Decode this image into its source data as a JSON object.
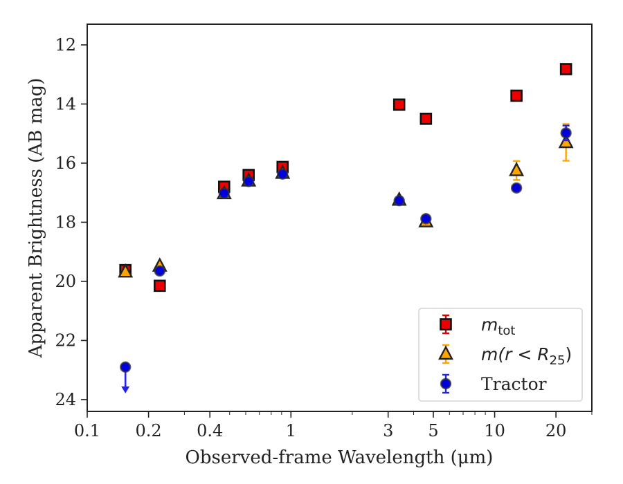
{
  "chart_data": {
    "type": "scatter",
    "title": "",
    "xlabel": "Observed-frame Wavelength (μm)",
    "ylabel": "Apparent Brightness (AB mag)",
    "x_scale": "log",
    "xlim": [
      0.1,
      30
    ],
    "ylim": [
      24.4,
      11.3
    ],
    "y_inverted": true,
    "grid": false,
    "legend_position": "lower-right",
    "x_ticks": [
      0.1,
      0.2,
      0.4,
      1,
      3,
      5,
      10,
      20
    ],
    "x_tick_labels": [
      "0.1",
      "0.2",
      "0.4",
      "1",
      "3",
      "5",
      "10",
      "20"
    ],
    "y_ticks": [
      12,
      14,
      16,
      18,
      20,
      22,
      24
    ],
    "y_tick_labels": [
      "12",
      "14",
      "16",
      "18",
      "20",
      "22",
      "24"
    ],
    "series": [
      {
        "name": "m_tot",
        "legend_label": {
          "base": "m",
          "sub": "tot"
        },
        "marker": "square",
        "color": "#ee0000",
        "error_color": "#dd0000",
        "points": [
          {
            "x": 0.154,
            "y": 19.62,
            "err": 0.06
          },
          {
            "x": 0.227,
            "y": 20.15,
            "err": 0.05
          },
          {
            "x": 0.47,
            "y": 16.8,
            "err": 0.05
          },
          {
            "x": 0.62,
            "y": 16.4,
            "err": 0.05
          },
          {
            "x": 0.91,
            "y": 16.13,
            "err": 0.05
          },
          {
            "x": 3.4,
            "y": 14.02,
            "err": 0.04
          },
          {
            "x": 4.6,
            "y": 14.5,
            "err": 0.04
          },
          {
            "x": 12.8,
            "y": 13.72,
            "err": 0.04
          },
          {
            "x": 22.4,
            "y": 12.82,
            "err": 0.04
          }
        ]
      },
      {
        "name": "m(r < R25)",
        "legend_label": {
          "base": "m(r < R",
          "sub": "25",
          "tail": ")"
        },
        "marker": "triangle",
        "color": "#ffa500",
        "error_color": "#ffa500",
        "points": [
          {
            "x": 0.154,
            "y": 19.68,
            "err": 0.05
          },
          {
            "x": 0.227,
            "y": 19.48,
            "err": 0.05
          },
          {
            "x": 0.47,
            "y": 17.03,
            "err": 0.05
          },
          {
            "x": 0.62,
            "y": 16.6,
            "err": 0.05
          },
          {
            "x": 0.91,
            "y": 16.34,
            "err": 0.05
          },
          {
            "x": 3.4,
            "y": 17.25,
            "err": 0.05
          },
          {
            "x": 4.6,
            "y": 17.98,
            "err": 0.05
          },
          {
            "x": 12.8,
            "y": 16.25,
            "err": 0.32
          },
          {
            "x": 22.4,
            "y": 15.3,
            "err": 0.62
          }
        ]
      },
      {
        "name": "Tractor",
        "legend_label": {
          "base": "Tractor"
        },
        "marker": "circle",
        "color": "#0000dd",
        "error_color": "#2222ee",
        "points": [
          {
            "x": 0.154,
            "y": 22.9,
            "err": 0,
            "upper_limit": true
          },
          {
            "x": 0.227,
            "y": 19.65,
            "err": 0.05
          },
          {
            "x": 0.47,
            "y": 17.02,
            "err": 0.05
          },
          {
            "x": 0.62,
            "y": 16.62,
            "err": 0.05
          },
          {
            "x": 0.91,
            "y": 16.37,
            "err": 0.05
          },
          {
            "x": 3.4,
            "y": 17.27,
            "err": 0.05
          },
          {
            "x": 4.6,
            "y": 17.88,
            "err": 0.05
          },
          {
            "x": 12.8,
            "y": 16.84,
            "err": 0.05
          },
          {
            "x": 22.4,
            "y": 14.98,
            "err": 0.25
          }
        ]
      }
    ]
  }
}
